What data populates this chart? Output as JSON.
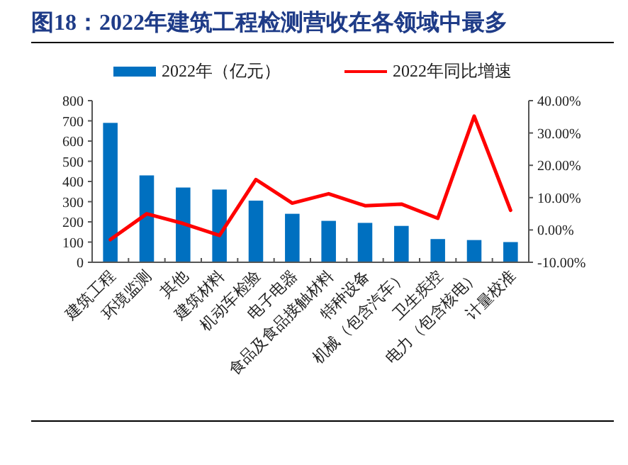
{
  "chart_data": {
    "type": "bar",
    "title": "图18：2022年建筑工程检测营收在各领域中最多",
    "categories": [
      "建筑工程",
      "环境监测",
      "其他",
      "建筑材料",
      "机动车检验",
      "电子电器",
      "食品及食品接触材料",
      "特种设备",
      "机械（包含汽车）",
      "卫生疾控",
      "电力（包含核电）",
      "计量校准"
    ],
    "series": [
      {
        "name": "2022年（亿元）",
        "color": "#0070c0",
        "values": [
          690,
          430,
          370,
          360,
          305,
          240,
          205,
          195,
          180,
          115,
          110,
          100
        ]
      },
      {
        "name": "2022年同比增速",
        "type": "line",
        "axis": "y2",
        "color": "#ff0000",
        "values": [
          -3,
          5,
          2,
          -1.7,
          15.6,
          8.3,
          11.2,
          7.5,
          8,
          3.6,
          35.2,
          6.1
        ]
      }
    ],
    "ylim": [
      0,
      800
    ],
    "yticks": [
      0,
      100,
      200,
      300,
      400,
      500,
      600,
      700,
      800
    ],
    "y2lim": [
      -10,
      40
    ],
    "y2ticks": [
      {
        "value": -10,
        "label": "-10.00%"
      },
      {
        "value": 0,
        "label": "0.00%"
      },
      {
        "value": 10,
        "label": "10.00%"
      },
      {
        "value": 20,
        "label": "20.00%"
      },
      {
        "value": 30,
        "label": "30.00%"
      },
      {
        "value": 40,
        "label": "40.00%"
      }
    ],
    "legend": "top",
    "grid": false,
    "marker": "none",
    "line_style": "solid"
  }
}
